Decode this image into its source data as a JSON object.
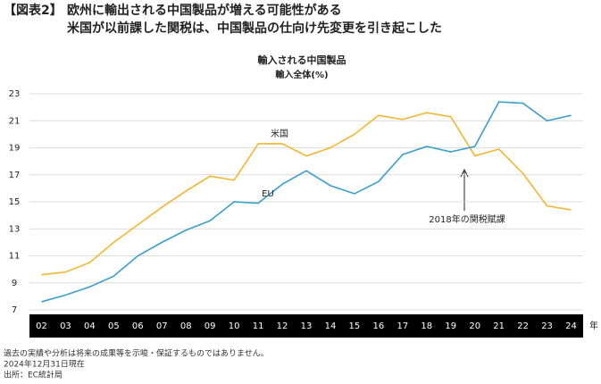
{
  "chart_data": {
    "type": "line",
    "figure_label": "【図表2】",
    "heading": "欧州に輸出される中国製品が増える可能性がある",
    "subheading": "米国が以前課した関税は、中国製品の仕向け先変更を引き起こした",
    "title": "輸入される中国製品",
    "subtitle": "輸入全体(%)",
    "x_unit": "年",
    "categories": [
      "02",
      "03",
      "04",
      "05",
      "06",
      "07",
      "08",
      "09",
      "10",
      "11",
      "12",
      "13",
      "14",
      "15",
      "16",
      "17",
      "18",
      "19",
      "20",
      "21",
      "22",
      "23",
      "24"
    ],
    "series": [
      {
        "name": "米国",
        "color": "#f2b630",
        "values": [
          9.6,
          9.8,
          10.5,
          12.0,
          13.3,
          14.6,
          15.8,
          16.9,
          16.6,
          19.3,
          19.3,
          18.4,
          19.0,
          20.0,
          21.4,
          21.1,
          21.6,
          21.3,
          18.4,
          18.9,
          17.1,
          14.7,
          14.4
        ]
      },
      {
        "name": "EU",
        "color": "#3b9ecb",
        "values": [
          7.6,
          8.1,
          8.7,
          9.5,
          11.0,
          12.0,
          12.9,
          13.6,
          15.0,
          14.9,
          16.3,
          17.3,
          16.2,
          15.6,
          16.5,
          18.5,
          19.1,
          18.7,
          19.1,
          22.4,
          22.3,
          21.0,
          21.4
        ]
      }
    ],
    "annotation": "2018年の関税賦課",
    "ylim": [
      7,
      23
    ],
    "yticks": [
      7,
      9,
      11,
      13,
      15,
      17,
      19,
      21,
      23
    ],
    "grid": true,
    "footnotes": [
      "過去の実績や分析は将来の成果等を示唆・保証するものではありません。",
      "2024年12月31日現在",
      "出所：EC統計局"
    ]
  }
}
